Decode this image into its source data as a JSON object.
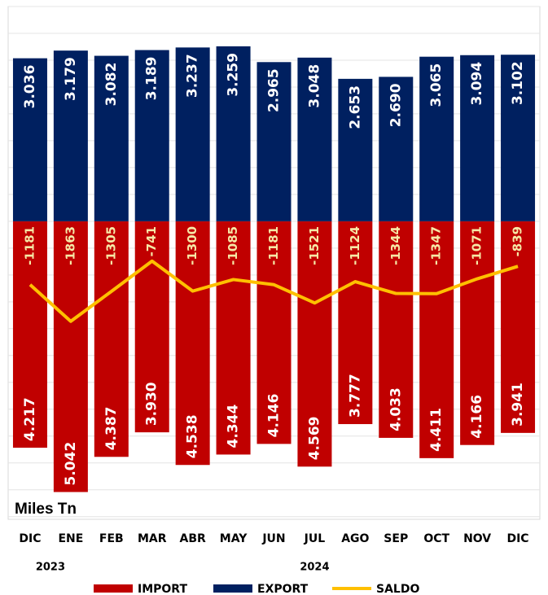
{
  "chart_data": {
    "type": "bar",
    "y_unit_label": "Miles Tn",
    "categories": [
      "DIC",
      "ENE",
      "FEB",
      "MAR",
      "ABR",
      "MAY",
      "JUN",
      "JUL",
      "AGO",
      "SEP",
      "OCT",
      "NOV",
      "DIC"
    ],
    "x_groups": [
      {
        "label": "2023",
        "span": [
          0,
          1
        ]
      },
      {
        "label": "2024",
        "span": [
          2,
          12
        ]
      }
    ],
    "series": [
      {
        "name": "IMPORT",
        "type": "bar",
        "color": "#c00000",
        "values": [
          -4217,
          -5042,
          -4387,
          -3930,
          -4538,
          -4344,
          -4146,
          -4569,
          -3777,
          -4033,
          -4411,
          -4166,
          -3941
        ],
        "value_labels": [
          "4.217",
          "5.042",
          "4.387",
          "3.930",
          "4.538",
          "4.344",
          "4.146",
          "4.569",
          "3.777",
          "4.033",
          "4.411",
          "4.166",
          "3.941"
        ]
      },
      {
        "name": "EXPORT",
        "type": "bar",
        "color": "#002060",
        "values": [
          3036,
          3179,
          3082,
          3189,
          3237,
          3259,
          2965,
          3048,
          2653,
          2690,
          3065,
          3094,
          3102
        ],
        "value_labels": [
          "3.036",
          "3.179",
          "3.082",
          "3.189",
          "3.237",
          "3.259",
          "2.965",
          "3.048",
          "2.653",
          "2.690",
          "3.065",
          "3.094",
          "3.102"
        ]
      },
      {
        "name": "SALDO",
        "type": "line",
        "color": "#ffc000",
        "values": [
          -1181,
          -1863,
          -1305,
          -741,
          -1300,
          -1085,
          -1181,
          -1521,
          -1124,
          -1344,
          -1347,
          -1071,
          -839
        ]
      }
    ],
    "ylim": [
      -5550,
      4000
    ],
    "yticks": [
      -5500,
      -5000,
      -4500,
      -4000,
      -3500,
      -3000,
      -2500,
      -2000,
      -1500,
      -1000,
      -500,
      0,
      500,
      1000,
      1500,
      2000,
      2500,
      3000,
      3500,
      4000
    ],
    "grid": true,
    "legend": "bottom"
  }
}
